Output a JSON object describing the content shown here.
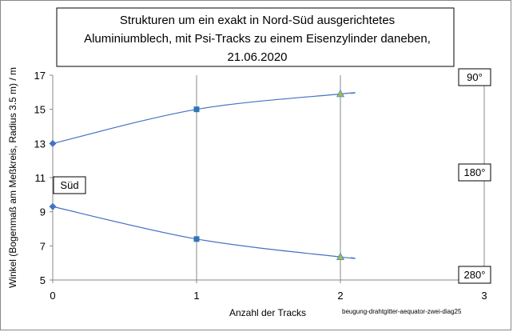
{
  "chart_data": {
    "type": "line",
    "title_lines": [
      "Strukturen um ein exakt in Nord-Süd ausgerichtetes",
      "Aluminiumblech, mit Psi-Tracks zu einem Eisenzylinder daneben,",
      "21.06.2020"
    ],
    "xlabel": "Anzahl der Tracks",
    "ylabel": "Winkel (Bogenmaß am Meßkreis, Radius 3.5 m) / m",
    "xlim": [
      0,
      3
    ],
    "ylim": [
      5,
      17
    ],
    "x_ticks": [
      "0",
      "1",
      "2",
      "3"
    ],
    "y_ticks": [
      "5",
      "7",
      "9",
      "11",
      "13",
      "15",
      "17"
    ],
    "grid": "vertical",
    "series": [
      {
        "color": "#4472c4",
        "points": [
          [
            0,
            13.0
          ],
          [
            1,
            15.0
          ],
          [
            2,
            15.9
          ]
        ]
      },
      {
        "color": "#4472c4",
        "points": [
          [
            0,
            9.3
          ],
          [
            1,
            7.4
          ],
          [
            2,
            6.35
          ]
        ]
      }
    ],
    "annotations": [
      {
        "text": "Süd",
        "x": 0,
        "y": 10.3
      },
      {
        "text": "90°",
        "side": "right",
        "y": 17
      },
      {
        "text": "180°",
        "side": "right",
        "y": 11
      },
      {
        "text": "280°",
        "side": "right",
        "y": 5
      }
    ],
    "footnote": "beugung-drahtgitter-aequator-zwei-diag25"
  }
}
